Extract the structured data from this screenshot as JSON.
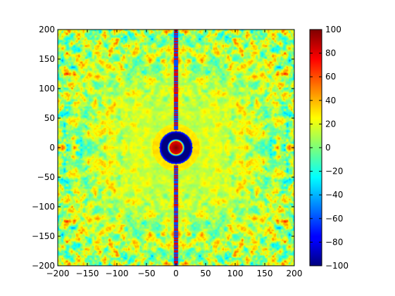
{
  "chart_data": {
    "type": "heatmap",
    "title": "",
    "xlabel": "",
    "ylabel": "",
    "xlim": [
      -200,
      200
    ],
    "ylim": [
      -200,
      200
    ],
    "x_ticks": [
      -200,
      -150,
      -100,
      -50,
      0,
      50,
      100,
      150,
      200
    ],
    "y_ticks": [
      -200,
      -150,
      -100,
      -50,
      0,
      50,
      100,
      150,
      200
    ],
    "colormap": "jet",
    "grid": false,
    "colorbar": {
      "range": [
        -100,
        100
      ],
      "ticks": [
        -100,
        -80,
        -60,
        -40,
        -20,
        0,
        20,
        40,
        60,
        80,
        100
      ],
      "placement": "right"
    },
    "field": {
      "central_peak_value": 100,
      "central_peak_radius": 10,
      "ring_value": -100,
      "ring_inner_radius": 15,
      "ring_outer_radius": 28,
      "halo_value": 30,
      "halo_outer_radius": 40,
      "background_mean": 20,
      "noise_amplitude": 70
    }
  }
}
